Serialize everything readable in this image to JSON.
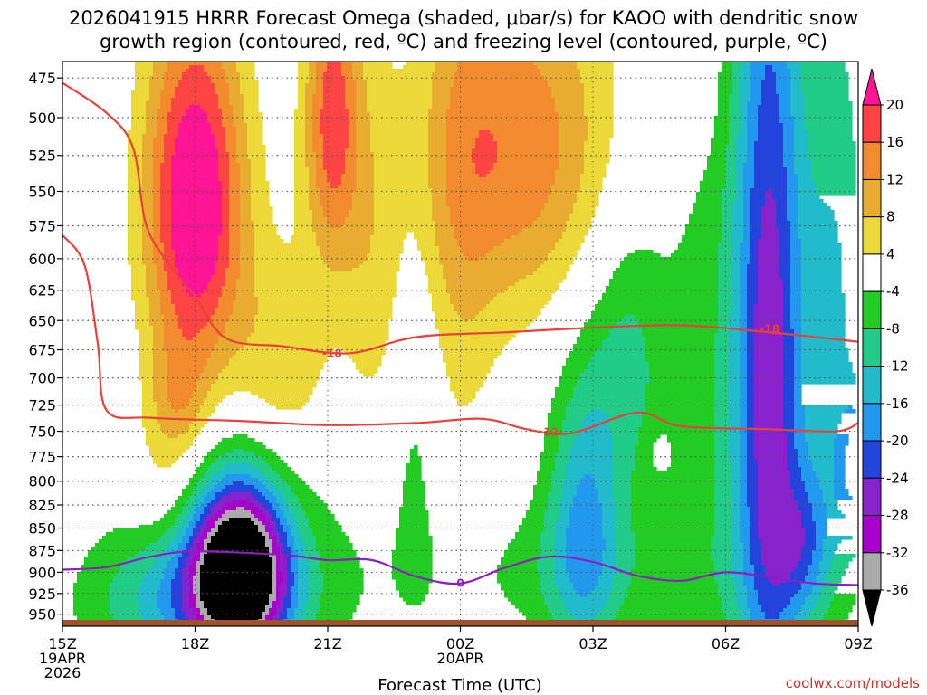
{
  "chart_data": {
    "type": "heatmap",
    "title_line1": "2026041915 HRRR Forecast Omega (shaded, μbar/s) for KAOO with dendritic snow",
    "title_line2": "growth region (contoured, red, ºC) and freezing level (contoured, purple, ºC)",
    "xlabel": "Forecast Time (UTC)",
    "credit": "coolwx.com/models",
    "x_ticks": [
      {
        "hour": 0,
        "lines": [
          "15Z",
          "19APR",
          "2026"
        ]
      },
      {
        "hour": 3,
        "lines": [
          "18Z"
        ]
      },
      {
        "hour": 6,
        "lines": [
          "21Z"
        ]
      },
      {
        "hour": 9,
        "lines": [
          "00Z",
          "20APR"
        ]
      },
      {
        "hour": 12,
        "lines": [
          "03Z"
        ]
      },
      {
        "hour": 15,
        "lines": [
          "06Z"
        ]
      },
      {
        "hour": 18,
        "lines": [
          "09Z"
        ]
      }
    ],
    "xlim_hours": [
      0,
      18
    ],
    "y_ticks": [
      "475",
      "500",
      "525",
      "550",
      "575",
      "600",
      "625",
      "650",
      "675",
      "700",
      "725",
      "750",
      "775",
      "800",
      "825",
      "850",
      "875",
      "900",
      "925",
      "950"
    ],
    "ylim_hpa": [
      965,
      465
    ],
    "y_scale": "log-pressure",
    "grid": true,
    "colorbar": {
      "labels": [
        "20",
        "16",
        "12",
        "8",
        "4",
        "-4",
        "-8",
        "-12",
        "-16",
        "-20",
        "-24",
        "-28",
        "-32",
        "-36"
      ],
      "bands": [
        {
          "lo": 20,
          "hi": 24,
          "color": "#ff1493"
        },
        {
          "lo": 16,
          "hi": 20,
          "color": "#ff4444"
        },
        {
          "lo": 12,
          "hi": 16,
          "color": "#f28a2e"
        },
        {
          "lo": 8,
          "hi": 12,
          "color": "#e8ac30"
        },
        {
          "lo": 4,
          "hi": 8,
          "color": "#ebd93a"
        },
        {
          "lo": -4,
          "hi": 4,
          "color": "#ffffff"
        },
        {
          "lo": -8,
          "hi": -4,
          "color": "#22cc22"
        },
        {
          "lo": -12,
          "hi": -8,
          "color": "#22cc88"
        },
        {
          "lo": -16,
          "hi": -12,
          "color": "#22bbcc"
        },
        {
          "lo": -20,
          "hi": -16,
          "color": "#2299ee"
        },
        {
          "lo": -24,
          "hi": -20,
          "color": "#2244dd"
        },
        {
          "lo": -28,
          "hi": -24,
          "color": "#8822cc"
        },
        {
          "lo": -32,
          "hi": -28,
          "color": "#aa00cc"
        },
        {
          "lo": -36,
          "hi": -32,
          "color": "#aaaaaa"
        },
        {
          "lo": -40,
          "hi": -36,
          "color": "#000000"
        }
      ]
    },
    "omega_features": [
      {
        "hour": 3.0,
        "hpa": 560,
        "sx": 0.8,
        "sy": 95,
        "amp": 26
      },
      {
        "hour": 2.6,
        "hpa": 720,
        "sx": 0.5,
        "sy": 40,
        "amp": 8
      },
      {
        "hour": 2.3,
        "hpa": 800,
        "sx": 0.6,
        "sy": 50,
        "amp": 5
      },
      {
        "hour": 6.1,
        "hpa": 500,
        "sx": 0.45,
        "sy": 70,
        "amp": 18
      },
      {
        "hour": 5.0,
        "hpa": 690,
        "sx": 0.8,
        "sy": 70,
        "amp": 8
      },
      {
        "hour": 7.0,
        "hpa": 610,
        "sx": 0.5,
        "sy": 110,
        "amp": 6
      },
      {
        "hour": 10.3,
        "hpa": 520,
        "sx": 1.5,
        "sy": 85,
        "amp": 15
      },
      {
        "hour": 9.0,
        "hpa": 600,
        "sx": 0.6,
        "sy": 180,
        "amp": 5
      },
      {
        "hour": 14.0,
        "hpa": 470,
        "sx": 0.6,
        "sy": 40,
        "amp": 6
      },
      {
        "hour": 4.0,
        "hpa": 895,
        "sx": 0.75,
        "sy": 70,
        "amp": -42
      },
      {
        "hour": 3.0,
        "hpa": 935,
        "sx": 1.6,
        "sy": 60,
        "amp": -14
      },
      {
        "hour": 4.5,
        "hpa": 870,
        "sx": 2.5,
        "sy": 120,
        "amp": -4
      },
      {
        "hour": 11.8,
        "hpa": 840,
        "sx": 0.6,
        "sy": 120,
        "amp": -15
      },
      {
        "hour": 12.8,
        "hpa": 680,
        "sx": 0.6,
        "sy": 90,
        "amp": -8
      },
      {
        "hour": 11.5,
        "hpa": 900,
        "sx": 2.5,
        "sy": 60,
        "amp": -5
      },
      {
        "hour": 16.0,
        "hpa": 700,
        "sx": 0.55,
        "sy": 300,
        "amp": -24
      },
      {
        "hour": 17.5,
        "hpa": 640,
        "sx": 0.6,
        "sy": 200,
        "amp": -12
      },
      {
        "hour": 18.0,
        "hpa": 790,
        "sx": 0.35,
        "sy": 50,
        "amp": -16
      },
      {
        "hour": 16.8,
        "hpa": 870,
        "sx": 0.45,
        "sy": 60,
        "amp": -12
      },
      {
        "hour": 14.8,
        "hpa": 700,
        "sx": 1.0,
        "sy": 260,
        "amp": -6
      },
      {
        "hour": 8.0,
        "hpa": 760,
        "sx": 0.35,
        "sy": 120,
        "amp": -4
      },
      {
        "hour": 13.5,
        "hpa": 770,
        "sx": 0.2,
        "sy": 15,
        "amp": 3
      }
    ],
    "contours": [
      {
        "name": "dgz-upper-minus-18",
        "label": "-18",
        "color": "#e8413c",
        "label_at": {
          "hour": 6.1,
          "hpa": 678
        },
        "label2": "-18",
        "label2_at": {
          "hour": 16.0,
          "hpa": 657
        },
        "points": [
          {
            "hour": 0.0,
            "hpa": 478
          },
          {
            "hour": 1.0,
            "hpa": 497
          },
          {
            "hour": 1.6,
            "hpa": 520
          },
          {
            "hour": 1.9,
            "hpa": 575
          },
          {
            "hour": 2.5,
            "hpa": 608
          },
          {
            "hour": 3.0,
            "hpa": 630
          },
          {
            "hour": 3.7,
            "hpa": 665
          },
          {
            "hour": 5.0,
            "hpa": 672
          },
          {
            "hour": 6.5,
            "hpa": 678
          },
          {
            "hour": 8.0,
            "hpa": 664
          },
          {
            "hour": 10.0,
            "hpa": 660
          },
          {
            "hour": 12.0,
            "hpa": 656
          },
          {
            "hour": 14.0,
            "hpa": 654
          },
          {
            "hour": 16.0,
            "hpa": 660
          },
          {
            "hour": 18.0,
            "hpa": 668
          }
        ]
      },
      {
        "name": "dgz-lower-minus-12",
        "label": "-12",
        "color": "#e8413c",
        "label_at": {
          "hour": 11.0,
          "hpa": 751
        },
        "points": [
          {
            "hour": 0.0,
            "hpa": 582
          },
          {
            "hour": 0.5,
            "hpa": 605
          },
          {
            "hour": 0.8,
            "hpa": 670
          },
          {
            "hour": 1.0,
            "hpa": 730
          },
          {
            "hour": 2.0,
            "hpa": 737
          },
          {
            "hour": 4.0,
            "hpa": 740
          },
          {
            "hour": 6.0,
            "hpa": 744
          },
          {
            "hour": 8.0,
            "hpa": 742
          },
          {
            "hour": 9.5,
            "hpa": 738
          },
          {
            "hour": 10.5,
            "hpa": 748
          },
          {
            "hour": 11.5,
            "hpa": 752
          },
          {
            "hour": 13.0,
            "hpa": 732
          },
          {
            "hour": 14.0,
            "hpa": 745
          },
          {
            "hour": 16.0,
            "hpa": 748
          },
          {
            "hour": 17.5,
            "hpa": 750
          },
          {
            "hour": 18.0,
            "hpa": 742
          }
        ]
      },
      {
        "name": "freezing-level-0",
        "label": "0",
        "color": "#8e1fbf",
        "label_at": {
          "hour": 3.0,
          "hpa": 876
        },
        "label2": "0",
        "label2_at": {
          "hour": 9.0,
          "hpa": 913
        },
        "points": [
          {
            "hour": 0.0,
            "hpa": 897
          },
          {
            "hour": 1.0,
            "hpa": 894
          },
          {
            "hour": 2.0,
            "hpa": 882
          },
          {
            "hour": 3.0,
            "hpa": 876
          },
          {
            "hour": 5.0,
            "hpa": 880
          },
          {
            "hour": 6.0,
            "hpa": 886
          },
          {
            "hour": 7.0,
            "hpa": 886
          },
          {
            "hour": 8.0,
            "hpa": 905
          },
          {
            "hour": 9.0,
            "hpa": 913
          },
          {
            "hour": 10.0,
            "hpa": 895
          },
          {
            "hour": 11.0,
            "hpa": 882
          },
          {
            "hour": 12.0,
            "hpa": 888
          },
          {
            "hour": 13.0,
            "hpa": 904
          },
          {
            "hour": 14.0,
            "hpa": 910
          },
          {
            "hour": 15.0,
            "hpa": 900
          },
          {
            "hour": 16.0,
            "hpa": 906
          },
          {
            "hour": 17.0,
            "hpa": 913
          },
          {
            "hour": 18.0,
            "hpa": 915
          }
        ]
      }
    ],
    "colors": {
      "ground": "#a0522d",
      "grid": "#555555"
    }
  }
}
